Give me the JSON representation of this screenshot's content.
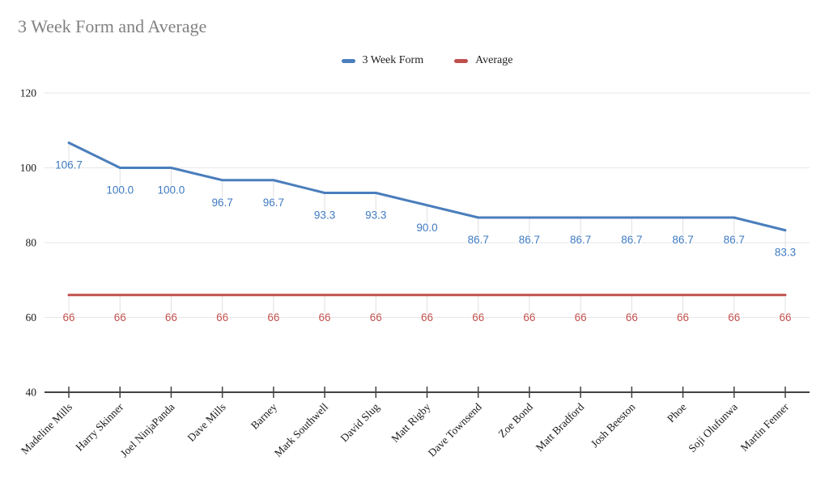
{
  "title": "3 Week Form and Average",
  "legend": [
    {
      "label": "3 Week Form",
      "color": "#4a7ebc"
    },
    {
      "label": "Average",
      "color": "#c0504d"
    }
  ],
  "colors": {
    "form_line": "#4a7ebc",
    "form_label": "#3e7ac1",
    "average_line": "#c0504d",
    "average_label": "#c0504d",
    "gridline": "#e6e6e6",
    "drop_line": "#e0e0e0",
    "axis": "#424242",
    "axis_text": "#1a1a1a",
    "title_text": "#818181"
  },
  "chart_data": {
    "type": "line",
    "title": "3 Week Form and Average",
    "xlabel": "",
    "ylabel": "",
    "ylim": [
      40,
      120
    ],
    "grid": true,
    "legend_position": "top",
    "y_ticks": [
      40,
      60,
      80,
      100,
      120
    ],
    "categories": [
      "Madeline Mills",
      "Harry Skinner",
      "Joel NinjaPanda",
      "Dave Mills",
      "Barney",
      "Mark Southwell",
      "David Slug",
      "Matt Rigby",
      "Dave Townsend",
      "Zoe Bond",
      "Matt Bradford",
      "Josh Beeston",
      "Phoe",
      "Soji Olufunwa",
      "Martin Fenner"
    ],
    "series": [
      {
        "name": "3 Week Form",
        "color": "#4a7ebc",
        "label_color": "#3e7ac1",
        "values": [
          106.7,
          100.0,
          100.0,
          96.7,
          96.7,
          93.3,
          93.3,
          90.0,
          86.7,
          86.7,
          86.7,
          86.7,
          86.7,
          86.7,
          83.3
        ],
        "labels": [
          "106.7",
          "100.0",
          "100.0",
          "96.7",
          "96.7",
          "93.3",
          "93.3",
          "90.0",
          "86.7",
          "86.7",
          "86.7",
          "86.7",
          "86.7",
          "86.7",
          "83.3"
        ]
      },
      {
        "name": "Average",
        "color": "#c0504d",
        "label_color": "#c0504d",
        "values": [
          66,
          66,
          66,
          66,
          66,
          66,
          66,
          66,
          66,
          66,
          66,
          66,
          66,
          66,
          66
        ],
        "labels": [
          "66",
          "66",
          "66",
          "66",
          "66",
          "66",
          "66",
          "66",
          "66",
          "66",
          "66",
          "66",
          "66",
          "66",
          "66"
        ]
      }
    ]
  }
}
